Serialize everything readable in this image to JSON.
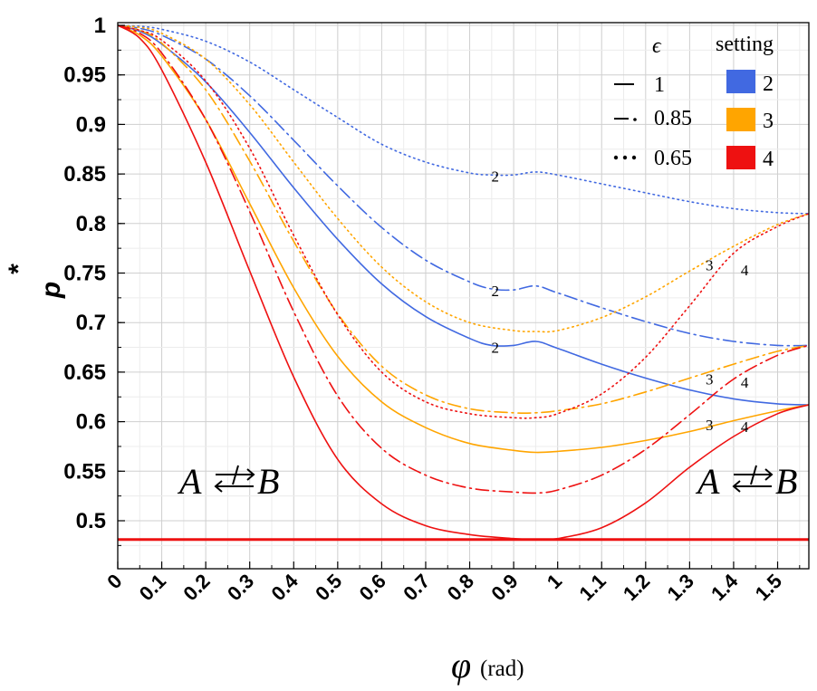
{
  "chart_data": {
    "type": "line",
    "title": "",
    "xlabel": "φ",
    "xlabel_unit": "(rad)",
    "ylabel": "p",
    "ylabel_superscript": "*",
    "xlim": [
      0,
      1.571
    ],
    "ylim": [
      0.455,
      1.0
    ],
    "x_ticks": [
      "0",
      "0.1",
      "0.2",
      "0.3",
      "0.4",
      "0.5",
      "0.6",
      "0.7",
      "0.8",
      "0.9",
      "1",
      "1.1",
      "1.2",
      "1.3",
      "1.4",
      "1.5"
    ],
    "y_ticks": [
      "0.5",
      "0.55",
      "0.6",
      "0.65",
      "0.7",
      "0.75",
      "0.8",
      "0.85",
      "0.9",
      "0.95",
      "1"
    ],
    "grid": true,
    "threshold": {
      "value": 0.481,
      "color": "#ee1111"
    },
    "region_left": {
      "A": "A",
      "B": "B"
    },
    "region_right": {
      "A": "A",
      "B": "B"
    },
    "legend": {
      "epsilon_title": "ϵ",
      "setting_title": "setting",
      "epsilon_entries": [
        {
          "style": "solid",
          "label": "1"
        },
        {
          "style": "dashdot",
          "label": "0.85"
        },
        {
          "style": "dotted",
          "label": "0.65"
        }
      ],
      "setting_entries": [
        {
          "color": "#4169e1",
          "label": "2"
        },
        {
          "color": "#ffa500",
          "label": "3"
        },
        {
          "color": "#ee1111",
          "label": "4"
        }
      ]
    },
    "series": [
      {
        "name": "setting 2, ϵ=1",
        "setting": "2",
        "color": "#4169e1",
        "style": "solid",
        "x": [
          0,
          0.05,
          0.1,
          0.2,
          0.3,
          0.4,
          0.5,
          0.6,
          0.7,
          0.8,
          0.85,
          0.9,
          0.95,
          1.0,
          1.1,
          1.2,
          1.3,
          1.4,
          1.5,
          1.571
        ],
        "y": [
          1.0,
          0.994,
          0.981,
          0.943,
          0.892,
          0.836,
          0.784,
          0.739,
          0.706,
          0.684,
          0.677,
          0.677,
          0.681,
          0.674,
          0.658,
          0.644,
          0.632,
          0.623,
          0.618,
          0.617
        ]
      },
      {
        "name": "setting 2, ϵ=0.85",
        "setting": "2",
        "color": "#4169e1",
        "style": "dashdot",
        "x": [
          0,
          0.05,
          0.1,
          0.2,
          0.3,
          0.4,
          0.5,
          0.6,
          0.7,
          0.8,
          0.85,
          0.9,
          0.95,
          1.0,
          1.1,
          1.2,
          1.3,
          1.4,
          1.5,
          1.571
        ],
        "y": [
          1.0,
          0.997,
          0.99,
          0.966,
          0.929,
          0.884,
          0.838,
          0.796,
          0.763,
          0.741,
          0.734,
          0.733,
          0.737,
          0.73,
          0.715,
          0.701,
          0.689,
          0.681,
          0.677,
          0.677
        ]
      },
      {
        "name": "setting 2, ϵ=0.65",
        "setting": "2",
        "color": "#4169e1",
        "style": "dotted",
        "x": [
          0,
          0.05,
          0.1,
          0.2,
          0.3,
          0.4,
          0.5,
          0.6,
          0.7,
          0.8,
          0.85,
          0.9,
          0.95,
          1.0,
          1.1,
          1.2,
          1.3,
          1.4,
          1.5,
          1.571
        ],
        "y": [
          1.0,
          0.999,
          0.996,
          0.984,
          0.963,
          0.935,
          0.907,
          0.88,
          0.862,
          0.851,
          0.849,
          0.849,
          0.852,
          0.849,
          0.84,
          0.831,
          0.822,
          0.815,
          0.811,
          0.81
        ]
      },
      {
        "name": "setting 3, ϵ=1",
        "setting": "3",
        "color": "#ffa500",
        "style": "solid",
        "x": [
          0,
          0.05,
          0.1,
          0.2,
          0.3,
          0.4,
          0.5,
          0.6,
          0.7,
          0.8,
          0.9,
          0.95,
          1.0,
          1.1,
          1.2,
          1.3,
          1.4,
          1.5,
          1.571
        ],
        "y": [
          1.0,
          0.99,
          0.969,
          0.905,
          0.82,
          0.735,
          0.666,
          0.62,
          0.594,
          0.578,
          0.571,
          0.569,
          0.57,
          0.574,
          0.581,
          0.59,
          0.601,
          0.611,
          0.617
        ]
      },
      {
        "name": "setting 3, ϵ=0.85",
        "setting": "3",
        "color": "#ffa500",
        "style": "dashdot",
        "x": [
          0,
          0.05,
          0.1,
          0.2,
          0.3,
          0.4,
          0.5,
          0.6,
          0.7,
          0.8,
          0.9,
          0.95,
          1.0,
          1.1,
          1.2,
          1.3,
          1.4,
          1.5,
          1.571
        ],
        "y": [
          1.0,
          0.995,
          0.982,
          0.935,
          0.863,
          0.782,
          0.709,
          0.656,
          0.627,
          0.613,
          0.609,
          0.609,
          0.611,
          0.618,
          0.63,
          0.644,
          0.658,
          0.671,
          0.677
        ]
      },
      {
        "name": "setting 3, ϵ=0.65",
        "setting": "3",
        "color": "#ffa500",
        "style": "dotted",
        "x": [
          0,
          0.05,
          0.1,
          0.2,
          0.3,
          0.4,
          0.5,
          0.6,
          0.7,
          0.8,
          0.9,
          0.95,
          1.0,
          1.1,
          1.2,
          1.3,
          1.4,
          1.5,
          1.571
        ],
        "y": [
          1.0,
          0.998,
          0.992,
          0.966,
          0.92,
          0.862,
          0.805,
          0.756,
          0.721,
          0.7,
          0.692,
          0.691,
          0.692,
          0.705,
          0.726,
          0.752,
          0.777,
          0.799,
          0.81
        ]
      },
      {
        "name": "setting 4, ϵ=1",
        "setting": "4",
        "color": "#ee1111",
        "style": "solid",
        "x": [
          0,
          0.05,
          0.1,
          0.2,
          0.3,
          0.4,
          0.5,
          0.6,
          0.7,
          0.8,
          0.9,
          0.95,
          1.0,
          1.1,
          1.2,
          1.3,
          1.4,
          1.5,
          1.571
        ],
        "y": [
          1.0,
          0.987,
          0.955,
          0.862,
          0.752,
          0.645,
          0.562,
          0.517,
          0.495,
          0.486,
          0.482,
          0.481,
          0.482,
          0.493,
          0.518,
          0.554,
          0.585,
          0.608,
          0.617
        ]
      },
      {
        "name": "setting 4, ϵ=0.85",
        "setting": "4",
        "color": "#ee1111",
        "style": "dashdot",
        "x": [
          0,
          0.05,
          0.1,
          0.2,
          0.3,
          0.4,
          0.5,
          0.6,
          0.7,
          0.8,
          0.9,
          0.95,
          1.0,
          1.1,
          1.2,
          1.3,
          1.4,
          1.5,
          1.571
        ],
        "y": [
          1.0,
          0.992,
          0.972,
          0.905,
          0.812,
          0.711,
          0.626,
          0.573,
          0.546,
          0.533,
          0.529,
          0.528,
          0.531,
          0.546,
          0.572,
          0.607,
          0.643,
          0.667,
          0.677
        ]
      },
      {
        "name": "setting 4, ϵ=0.65",
        "setting": "4",
        "color": "#ee1111",
        "style": "dotted",
        "x": [
          0,
          0.05,
          0.1,
          0.2,
          0.3,
          0.4,
          0.5,
          0.6,
          0.7,
          0.8,
          0.9,
          0.95,
          1.0,
          1.1,
          1.2,
          1.3,
          1.4,
          1.5,
          1.571
        ],
        "y": [
          1.0,
          0.995,
          0.985,
          0.944,
          0.876,
          0.788,
          0.708,
          0.65,
          0.62,
          0.608,
          0.604,
          0.604,
          0.608,
          0.628,
          0.665,
          0.717,
          0.77,
          0.797,
          0.81
        ]
      }
    ],
    "curve_labels": [
      {
        "text": "2",
        "x": 0.858,
        "y": 0.848
      },
      {
        "text": "2",
        "x": 0.858,
        "y": 0.732
      },
      {
        "text": "2",
        "x": 0.858,
        "y": 0.675
      },
      {
        "text": "3",
        "x": 1.345,
        "y": 0.758
      },
      {
        "text": "3",
        "x": 1.345,
        "y": 0.643
      },
      {
        "text": "3",
        "x": 1.345,
        "y": 0.597
      },
      {
        "text": "4",
        "x": 1.425,
        "y": 0.753
      },
      {
        "text": "4",
        "x": 1.425,
        "y": 0.64
      },
      {
        "text": "4",
        "x": 1.425,
        "y": 0.595
      }
    ]
  }
}
